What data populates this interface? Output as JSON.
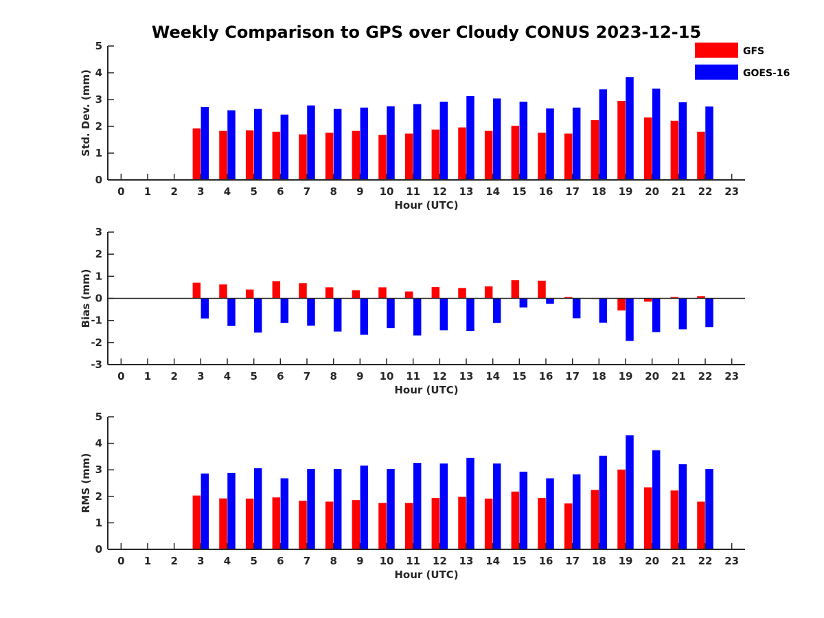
{
  "title": "Weekly Comparison to GPS over Cloudy CONUS 2023-12-15",
  "colors": {
    "GFS": "#ff0000",
    "GOES-16": "#0000ff",
    "axis": "#262626"
  },
  "legend": {
    "placement": "top-right",
    "entries": [
      "GFS",
      "GOES-16"
    ]
  },
  "chart_data": [
    {
      "type": "bar",
      "ylabel": "Std. Dev. (mm)",
      "xlabel": "Hour (UTC)",
      "xlim": [
        -0.5,
        23.5
      ],
      "ylim": [
        0,
        5
      ],
      "yticks": [
        0,
        1,
        2,
        3,
        4,
        5
      ],
      "categories": [
        "0",
        "1",
        "2",
        "3",
        "4",
        "5",
        "6",
        "7",
        "8",
        "9",
        "10",
        "11",
        "12",
        "13",
        "14",
        "15",
        "16",
        "17",
        "18",
        "19",
        "20",
        "21",
        "22",
        "23"
      ],
      "grid": false,
      "series": [
        {
          "name": "GFS",
          "values": [
            null,
            null,
            null,
            1.92,
            1.83,
            1.85,
            1.8,
            1.7,
            1.76,
            1.83,
            1.68,
            1.73,
            1.88,
            1.96,
            1.83,
            2.02,
            1.76,
            1.73,
            2.23,
            2.95,
            2.33,
            2.21,
            1.8,
            null
          ]
        },
        {
          "name": "GOES-16",
          "values": [
            null,
            null,
            null,
            2.72,
            2.6,
            2.65,
            2.44,
            2.78,
            2.65,
            2.7,
            2.75,
            2.83,
            2.92,
            3.13,
            3.04,
            2.92,
            2.67,
            2.7,
            3.38,
            3.84,
            3.41,
            2.9,
            2.74,
            null
          ]
        }
      ]
    },
    {
      "type": "bar",
      "ylabel": "Bias (mm)",
      "xlabel": "Hour (UTC)",
      "xlim": [
        -0.5,
        23.5
      ],
      "ylim": [
        -3,
        3
      ],
      "yticks": [
        -3,
        -2,
        -1,
        0,
        1,
        2,
        3
      ],
      "categories": [
        "0",
        "1",
        "2",
        "3",
        "4",
        "5",
        "6",
        "7",
        "8",
        "9",
        "10",
        "11",
        "12",
        "13",
        "14",
        "15",
        "16",
        "17",
        "18",
        "19",
        "20",
        "21",
        "22",
        "23"
      ],
      "grid": false,
      "series": [
        {
          "name": "GFS",
          "values": [
            null,
            null,
            null,
            0.71,
            0.63,
            0.4,
            0.78,
            0.69,
            0.5,
            0.37,
            0.5,
            0.31,
            0.51,
            0.47,
            0.54,
            0.82,
            0.8,
            0.06,
            -0.03,
            -0.55,
            -0.15,
            0.06,
            0.1,
            null
          ]
        },
        {
          "name": "GOES-16",
          "values": [
            null,
            null,
            null,
            -0.91,
            -1.25,
            -1.55,
            -1.11,
            -1.24,
            -1.5,
            -1.65,
            -1.35,
            -1.68,
            -1.45,
            -1.48,
            -1.11,
            -0.41,
            -0.25,
            -0.9,
            -1.1,
            -1.93,
            -1.53,
            -1.4,
            -1.3,
            null
          ]
        }
      ]
    },
    {
      "type": "bar",
      "ylabel": "RMS (mm)",
      "xlabel": "Hour (UTC)",
      "xlim": [
        -0.5,
        23.5
      ],
      "ylim": [
        0,
        5
      ],
      "yticks": [
        0,
        1,
        2,
        3,
        4,
        5
      ],
      "categories": [
        "0",
        "1",
        "2",
        "3",
        "4",
        "5",
        "6",
        "7",
        "8",
        "9",
        "10",
        "11",
        "12",
        "13",
        "14",
        "15",
        "16",
        "17",
        "18",
        "19",
        "20",
        "21",
        "22",
        "23"
      ],
      "grid": false,
      "series": [
        {
          "name": "GFS",
          "values": [
            null,
            null,
            null,
            2.03,
            1.92,
            1.91,
            1.96,
            1.83,
            1.8,
            1.86,
            1.75,
            1.75,
            1.94,
            1.98,
            1.91,
            2.18,
            1.94,
            1.73,
            2.24,
            3.01,
            2.34,
            2.22,
            1.8,
            null
          ]
        },
        {
          "name": "GOES-16",
          "values": [
            null,
            null,
            null,
            2.86,
            2.88,
            3.06,
            2.68,
            3.03,
            3.03,
            3.16,
            3.03,
            3.26,
            3.24,
            3.45,
            3.24,
            2.93,
            2.68,
            2.83,
            3.53,
            4.3,
            3.74,
            3.21,
            3.03,
            null
          ]
        }
      ]
    }
  ]
}
